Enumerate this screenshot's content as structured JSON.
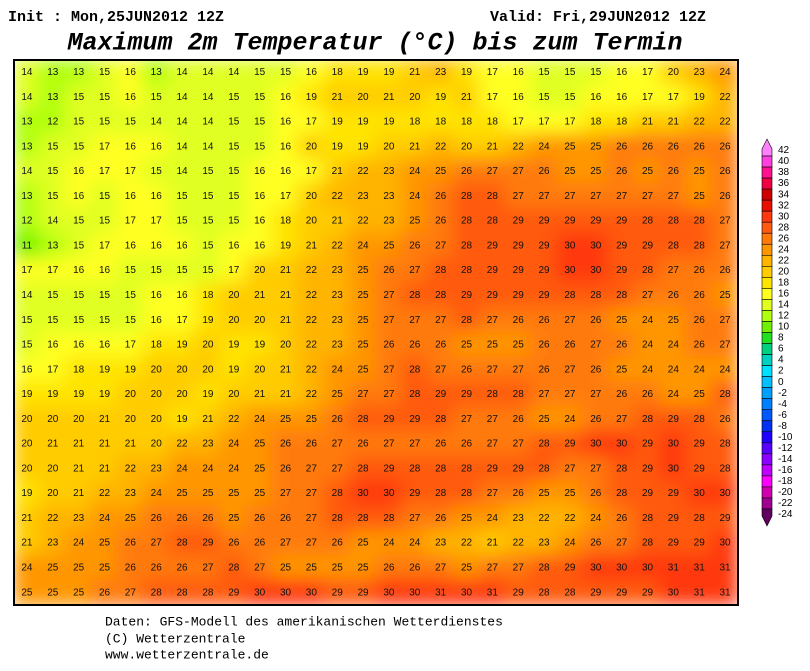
{
  "header": {
    "init": "Init : Mon,25JUN2012 12Z",
    "valid": "Valid: Fri,29JUN2012 12Z",
    "title": "Maximum 2m Temperatur (°C) bis zum Termin"
  },
  "map": {
    "values": [
      [
        14,
        13,
        13,
        15,
        16,
        13,
        14,
        14,
        14,
        15,
        15,
        16,
        18,
        19,
        19,
        21,
        23,
        19,
        17,
        16,
        15,
        15,
        15,
        16,
        17,
        20,
        23,
        24
      ],
      [
        14,
        13,
        15,
        15,
        16,
        15,
        14,
        14,
        15,
        15,
        16,
        19,
        21,
        20,
        21,
        20,
        19,
        21,
        17,
        16,
        15,
        15,
        16,
        16,
        17,
        17,
        19,
        22
      ],
      [
        13,
        12,
        15,
        15,
        15,
        14,
        14,
        14,
        15,
        15,
        16,
        17,
        19,
        19,
        19,
        18,
        18,
        18,
        18,
        17,
        17,
        17,
        18,
        18,
        21,
        21,
        22,
        22
      ],
      [
        13,
        15,
        15,
        17,
        16,
        16,
        14,
        14,
        15,
        15,
        16,
        20,
        19,
        19,
        20,
        21,
        22,
        20,
        21,
        22,
        24,
        25,
        25,
        26,
        26,
        26,
        26,
        26
      ],
      [
        14,
        15,
        16,
        17,
        17,
        15,
        14,
        15,
        15,
        16,
        16,
        17,
        21,
        22,
        23,
        24,
        25,
        26,
        27,
        27,
        26,
        25,
        25,
        26,
        25,
        26,
        25,
        26
      ],
      [
        13,
        15,
        16,
        15,
        16,
        16,
        15,
        15,
        15,
        16,
        17,
        20,
        22,
        23,
        23,
        24,
        26,
        28,
        28,
        27,
        27,
        27,
        27,
        27,
        27,
        27,
        25,
        26
      ],
      [
        12,
        14,
        15,
        15,
        17,
        17,
        15,
        15,
        15,
        16,
        18,
        20,
        21,
        22,
        23,
        25,
        26,
        28,
        28,
        29,
        29,
        29,
        29,
        29,
        28,
        28,
        28,
        27
      ],
      [
        11,
        13,
        15,
        17,
        16,
        16,
        16,
        15,
        16,
        16,
        19,
        21,
        22,
        24,
        25,
        26,
        27,
        28,
        29,
        29,
        29,
        30,
        30,
        29,
        29,
        28,
        28,
        27
      ],
      [
        17,
        17,
        16,
        16,
        15,
        15,
        15,
        15,
        17,
        20,
        21,
        22,
        23,
        25,
        26,
        27,
        28,
        28,
        29,
        29,
        29,
        30,
        30,
        29,
        28,
        27,
        26,
        26
      ],
      [
        14,
        15,
        15,
        15,
        15,
        16,
        16,
        18,
        20,
        21,
        21,
        22,
        23,
        25,
        27,
        28,
        28,
        29,
        29,
        29,
        29,
        28,
        28,
        28,
        27,
        26,
        26,
        25
      ],
      [
        15,
        15,
        15,
        15,
        15,
        16,
        17,
        19,
        20,
        20,
        21,
        22,
        23,
        25,
        27,
        27,
        27,
        28,
        27,
        26,
        26,
        27,
        26,
        25,
        24,
        25,
        26,
        27
      ],
      [
        15,
        16,
        16,
        16,
        17,
        18,
        19,
        20,
        19,
        19,
        20,
        22,
        23,
        25,
        26,
        26,
        26,
        25,
        25,
        25,
        26,
        26,
        27,
        26,
        24,
        24,
        26,
        27
      ],
      [
        16,
        17,
        18,
        19,
        19,
        20,
        20,
        20,
        19,
        20,
        21,
        22,
        24,
        25,
        27,
        28,
        27,
        26,
        27,
        27,
        26,
        27,
        26,
        25,
        24,
        24,
        24,
        24
      ],
      [
        19,
        19,
        19,
        19,
        20,
        20,
        20,
        19,
        20,
        21,
        21,
        22,
        25,
        27,
        27,
        28,
        29,
        29,
        28,
        28,
        27,
        27,
        27,
        26,
        26,
        24,
        25,
        28
      ],
      [
        20,
        20,
        20,
        21,
        20,
        20,
        19,
        21,
        22,
        24,
        25,
        25,
        26,
        28,
        29,
        29,
        28,
        27,
        27,
        26,
        25,
        24,
        26,
        27,
        28,
        29,
        28,
        26
      ],
      [
        20,
        21,
        21,
        21,
        21,
        20,
        22,
        23,
        24,
        25,
        26,
        26,
        27,
        26,
        27,
        27,
        26,
        26,
        27,
        27,
        28,
        29,
        30,
        30,
        29,
        30,
        29,
        28
      ],
      [
        20,
        20,
        21,
        21,
        22,
        23,
        24,
        24,
        24,
        25,
        26,
        27,
        27,
        28,
        29,
        28,
        28,
        28,
        29,
        29,
        28,
        27,
        27,
        28,
        29,
        30,
        29,
        28
      ],
      [
        19,
        20,
        21,
        22,
        23,
        24,
        25,
        25,
        25,
        25,
        27,
        27,
        28,
        30,
        30,
        29,
        28,
        28,
        27,
        26,
        25,
        25,
        26,
        28,
        29,
        29,
        30,
        30
      ],
      [
        21,
        22,
        23,
        24,
        25,
        26,
        26,
        26,
        25,
        26,
        26,
        27,
        28,
        28,
        28,
        27,
        26,
        25,
        24,
        23,
        22,
        22,
        24,
        26,
        28,
        29,
        28,
        29
      ],
      [
        21,
        23,
        24,
        25,
        26,
        27,
        28,
        29,
        26,
        26,
        27,
        27,
        26,
        25,
        24,
        24,
        23,
        22,
        21,
        22,
        23,
        24,
        26,
        27,
        28,
        29,
        29,
        30
      ],
      [
        24,
        25,
        25,
        25,
        26,
        26,
        26,
        27,
        28,
        27,
        25,
        25,
        25,
        25,
        26,
        26,
        27,
        25,
        27,
        27,
        28,
        29,
        30,
        30,
        30,
        31,
        31,
        31
      ],
      [
        25,
        25,
        25,
        26,
        27,
        28,
        28,
        28,
        29,
        30,
        30,
        30,
        29,
        29,
        30,
        30,
        31,
        30,
        31,
        29,
        28,
        28,
        29,
        29,
        29,
        30,
        31,
        31
      ]
    ]
  },
  "colorbar": {
    "ticks": [
      42,
      40,
      38,
      36,
      34,
      32,
      30,
      28,
      26,
      24,
      22,
      20,
      18,
      16,
      14,
      12,
      10,
      8,
      6,
      4,
      2,
      0,
      -2,
      -4,
      -6,
      -8,
      -10,
      -12,
      -14,
      -16,
      -18,
      -20,
      -22,
      -24
    ],
    "colors": [
      "#ff80ff",
      "#ff40e0",
      "#ff1090",
      "#f00040",
      "#d00000",
      "#e81000",
      "#ff3810",
      "#ff5a10",
      "#ff7a08",
      "#ff9600",
      "#ffb400",
      "#ffcc00",
      "#ffe400",
      "#ffff20",
      "#e0ff20",
      "#b0ff10",
      "#70f000",
      "#20e020",
      "#00d080",
      "#00d0c0",
      "#00e0ff",
      "#00c0ff",
      "#00a0ff",
      "#0080ff",
      "#0058ff",
      "#0030f0",
      "#2000ff",
      "#5800ff",
      "#8c00ff",
      "#c000ff",
      "#ff00ff",
      "#d000b0",
      "#a00090",
      "#600060"
    ]
  },
  "footer": {
    "lines": [
      "Daten: GFS-Modell des amerikanischen Wetterdienstes",
      "(C) Wetterzentrale",
      "www.wetterzentrale.de"
    ]
  }
}
